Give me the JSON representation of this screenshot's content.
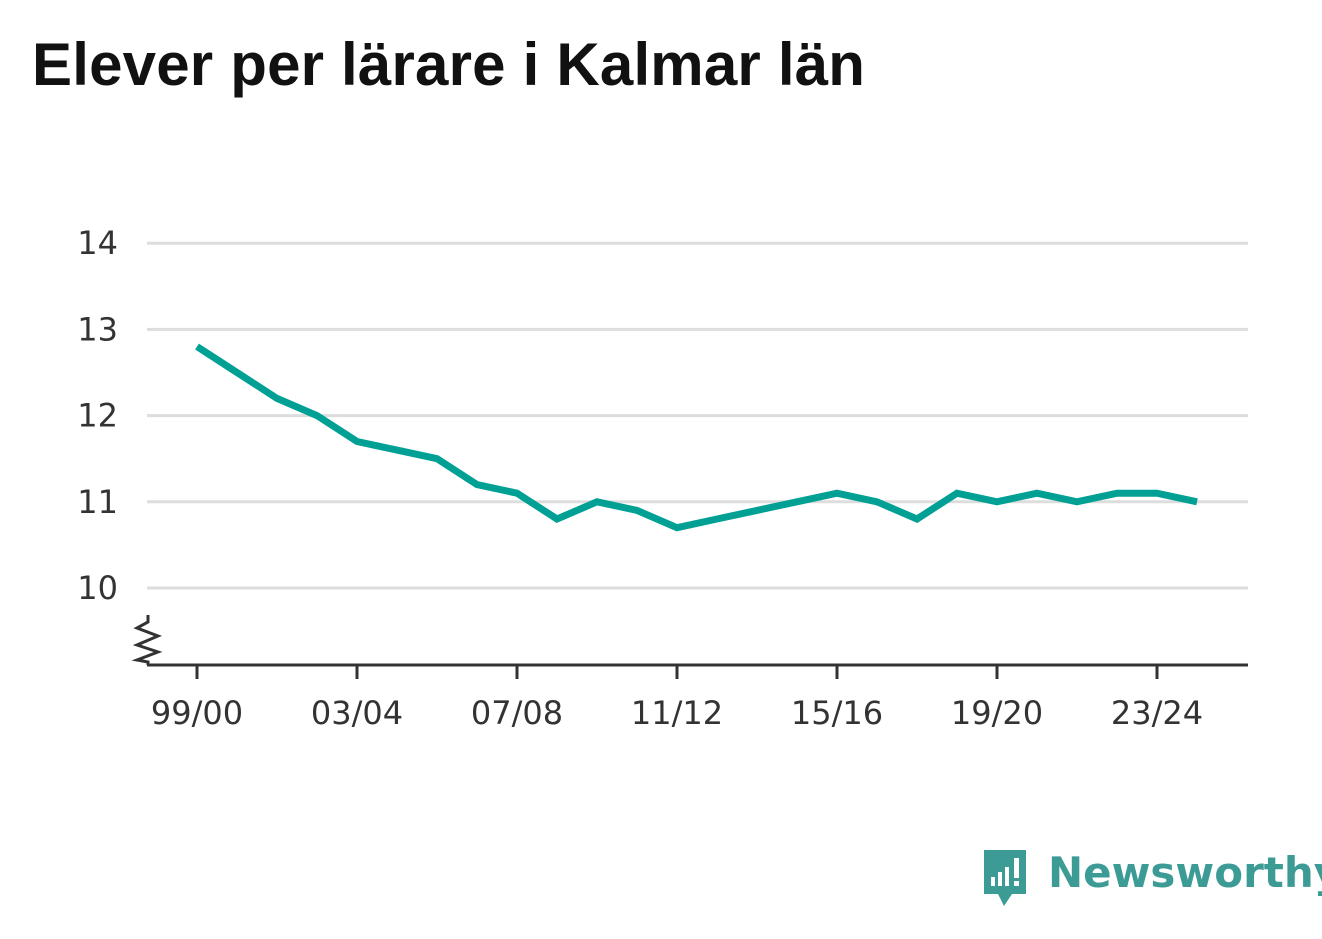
{
  "chart_data": {
    "type": "line",
    "title": "Elever per lärare i Kalmar län",
    "xlabel": "",
    "ylabel": "",
    "x_tick_labels": [
      "99/00",
      "03/04",
      "07/08",
      "11/12",
      "15/16",
      "19/20",
      "23/24"
    ],
    "y_ticks": [
      10,
      11,
      12,
      13,
      14
    ],
    "y_tick_labels": [
      "10",
      "11",
      "12",
      "13",
      "14"
    ],
    "ylim": [
      9.1,
      14
    ],
    "y_axis_break": true,
    "grid": true,
    "series": [
      {
        "color": "#00a095",
        "x": [
          "99/00",
          "00/01",
          "01/02",
          "02/03",
          "03/04",
          "04/05",
          "05/06",
          "06/07",
          "07/08",
          "08/09",
          "09/10",
          "10/11",
          "11/12",
          "12/13",
          "13/14",
          "14/15",
          "15/16",
          "16/17",
          "17/18",
          "18/19",
          "19/20",
          "20/21",
          "21/22",
          "22/23",
          "23/24",
          "24/25"
        ],
        "values": [
          12.8,
          12.5,
          12.2,
          12.0,
          11.7,
          11.6,
          11.5,
          11.2,
          11.1,
          10.8,
          11.0,
          10.9,
          10.7,
          10.8,
          10.9,
          11.0,
          11.1,
          11.0,
          10.8,
          11.1,
          11.0,
          11.1,
          11.0,
          11.1,
          11.1,
          11.0
        ]
      }
    ]
  },
  "branding": {
    "name": "Newsworthy",
    "icon": "newsworthy-logo-icon",
    "color": "#3d9b95"
  }
}
